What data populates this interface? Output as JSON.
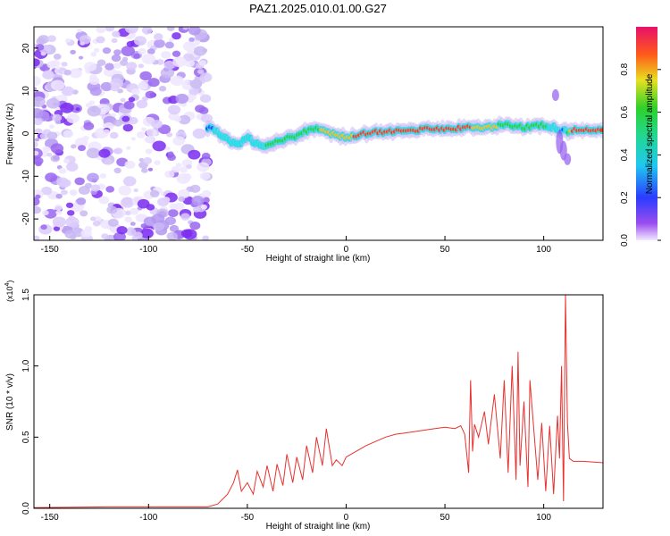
{
  "figure": {
    "title": "PAZ1.2025.010.01.00.G27"
  },
  "colors": {
    "snr_line": "#e8312f",
    "axis": "#000000",
    "spectro_low": "#c9b8f2",
    "spectro_mid": "#7a2cf0",
    "ridge_stops": [
      "#7a2cf0",
      "#1f4fff",
      "#21e0e6",
      "#26d13b",
      "#f0c020",
      "#ff3b1f",
      "#e01060"
    ]
  },
  "chart_data": [
    {
      "type": "heatmap",
      "title": "",
      "xlabel": "Height of straight line (km)",
      "ylabel": "Frequency (Hz)",
      "xlim": [
        -158,
        130
      ],
      "ylim": [
        -25,
        25
      ],
      "x_ticks": [
        -150,
        -100,
        -50,
        0,
        50,
        100
      ],
      "x_tick_labels": [
        "-150",
        "-100",
        "-50",
        "0",
        "50",
        "100"
      ],
      "y_ticks": [
        -20,
        -10,
        0,
        10,
        20
      ],
      "y_tick_labels": [
        "-20",
        "-10",
        "0",
        "10",
        "20"
      ],
      "noise_region_x": [
        -158,
        -70
      ],
      "ridge": {
        "description": "Doppler frequency ridge of the occultation signal",
        "x": [
          -70,
          -65,
          -60,
          -55,
          -50,
          -45,
          -40,
          -35,
          -30,
          -25,
          -20,
          -15,
          -10,
          -5,
          0,
          5,
          10,
          20,
          30,
          40,
          50,
          60,
          70,
          80,
          90,
          100,
          105,
          110,
          115,
          120,
          130
        ],
        "frequency": [
          1.5,
          0.5,
          -1.5,
          -2.5,
          -1.0,
          -2.5,
          -3.0,
          -2.0,
          -1.0,
          -0.5,
          0.5,
          1.5,
          0.5,
          -0.5,
          -1.0,
          -0.5,
          0.0,
          0.5,
          0.5,
          1.0,
          1.0,
          1.5,
          1.5,
          2.0,
          1.5,
          2.0,
          1.5,
          0.5,
          0.8,
          0.8,
          0.8
        ],
        "amplitude": [
          0.3,
          0.35,
          0.4,
          0.45,
          0.4,
          0.45,
          0.5,
          0.55,
          0.55,
          0.6,
          0.6,
          0.65,
          0.7,
          0.75,
          0.8,
          0.85,
          0.85,
          0.9,
          0.95,
          0.9,
          0.9,
          0.85,
          0.8,
          0.6,
          0.5,
          0.55,
          0.4,
          0.3,
          0.95,
          0.95,
          0.95
        ]
      },
      "colorbar": {
        "label": "Normalized spectral amplitude",
        "range": [
          0.0,
          1.0
        ],
        "ticks": [
          0.0,
          0.2,
          0.4,
          0.6,
          0.8
        ],
        "tick_labels": [
          "0.0",
          "0.2",
          "0.4",
          "0.6",
          "0.8"
        ]
      }
    },
    {
      "type": "line",
      "title": "",
      "xlabel": "Height of straight line (km)",
      "ylabel": "SNR (10 * v/v)",
      "y_scale_note": "(x10",
      "y_scale_exp": "4",
      "y_scale_close": ")",
      "xlim": [
        -158,
        130
      ],
      "ylim": [
        0,
        1.5
      ],
      "x_ticks": [
        -150,
        -100,
        -50,
        0,
        50,
        100
      ],
      "x_tick_labels": [
        "-150",
        "-100",
        "-50",
        "0",
        "50",
        "100"
      ],
      "y_ticks": [
        0.0,
        0.5,
        1.0,
        1.5
      ],
      "y_tick_labels": [
        "0.0",
        "0.5",
        "1.0",
        "1.5"
      ],
      "series": [
        {
          "name": "SNR",
          "x": [
            -158,
            -120,
            -90,
            -70,
            -65,
            -60,
            -57,
            -55,
            -53,
            -50,
            -47,
            -45,
            -42,
            -40,
            -37,
            -35,
            -32,
            -30,
            -27,
            -25,
            -22,
            -20,
            -17,
            -15,
            -12,
            -10,
            -7,
            -5,
            -2,
            0,
            5,
            10,
            15,
            20,
            25,
            30,
            35,
            40,
            45,
            50,
            55,
            58,
            60,
            62,
            63,
            64,
            65,
            67,
            70,
            72,
            75,
            78,
            80,
            82,
            84,
            86,
            87,
            88,
            90,
            92,
            93,
            95,
            97,
            99,
            101,
            103,
            105,
            107,
            108,
            109,
            110,
            111,
            112,
            113,
            115,
            120,
            130
          ],
          "y": [
            0.005,
            0.01,
            0.01,
            0.01,
            0.03,
            0.1,
            0.18,
            0.27,
            0.12,
            0.18,
            0.1,
            0.26,
            0.15,
            0.3,
            0.12,
            0.31,
            0.16,
            0.38,
            0.18,
            0.36,
            0.2,
            0.44,
            0.25,
            0.5,
            0.3,
            0.56,
            0.3,
            0.34,
            0.3,
            0.36,
            0.4,
            0.44,
            0.47,
            0.5,
            0.52,
            0.53,
            0.54,
            0.55,
            0.56,
            0.57,
            0.56,
            0.58,
            0.52,
            0.25,
            0.9,
            0.4,
            0.59,
            0.5,
            0.68,
            0.45,
            0.8,
            0.35,
            0.9,
            0.25,
            1.0,
            0.2,
            1.1,
            0.3,
            0.75,
            0.15,
            0.9,
            0.55,
            0.2,
            0.6,
            0.12,
            0.58,
            0.1,
            0.65,
            0.35,
            1.0,
            0.05,
            1.5,
            0.6,
            0.35,
            0.33,
            0.33,
            0.32
          ]
        }
      ]
    }
  ]
}
